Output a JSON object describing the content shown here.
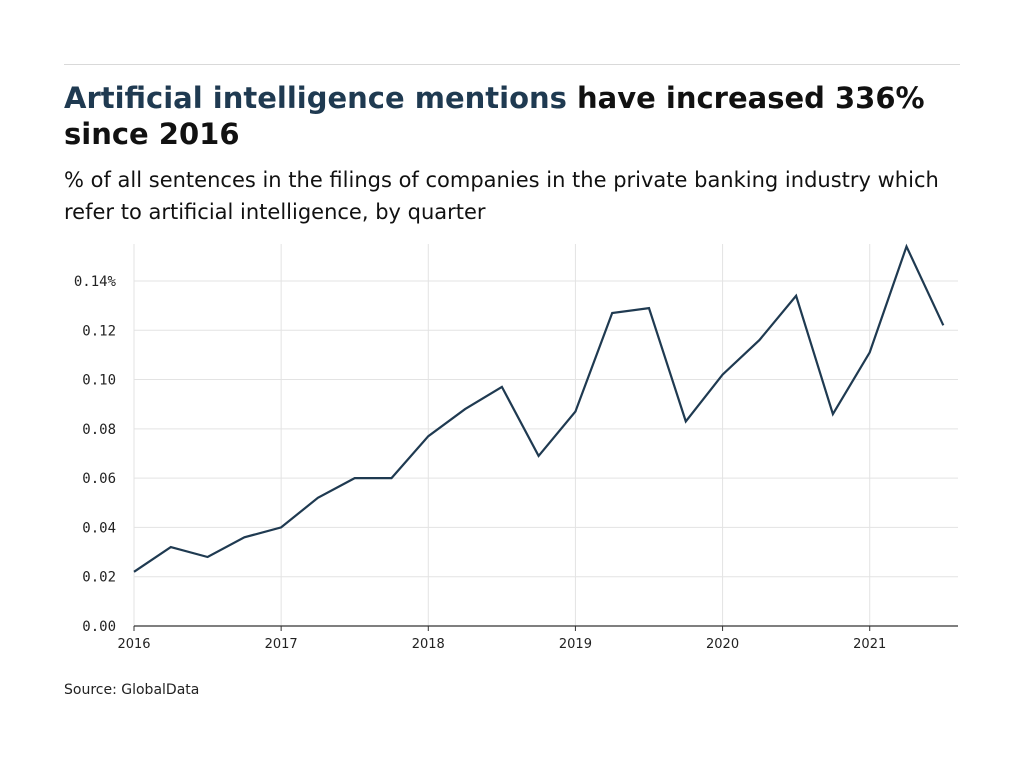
{
  "title": {
    "highlight": "Artificial intelligence mentions",
    "rest": " have increased 336% since 2016"
  },
  "subtitle": "% of all sentences in the filings of companies in the private banking industry which refer to artificial intelligence, by quarter",
  "source": "Source: GlobalData",
  "colors": {
    "line": "#1f3a51",
    "grid": "#e3e3e3",
    "axis": "#333333",
    "title_highlight": "#1f3a51"
  },
  "chart_data": {
    "type": "line",
    "title": "Artificial intelligence mentions have increased 336% since 2016",
    "subtitle": "% of all sentences in the filings of companies in the private banking industry which refer to artificial intelligence, by quarter",
    "xlabel": "",
    "ylabel": "",
    "xlim": [
      2016,
      2021.6
    ],
    "ylim": [
      0,
      0.155
    ],
    "grid": true,
    "legend": "none",
    "x_ticks": [
      {
        "value": 2016,
        "label": "2016"
      },
      {
        "value": 2017,
        "label": "2017"
      },
      {
        "value": 2018,
        "label": "2018"
      },
      {
        "value": 2019,
        "label": "2019"
      },
      {
        "value": 2020,
        "label": "2020"
      },
      {
        "value": 2021,
        "label": "2021"
      }
    ],
    "y_ticks": [
      {
        "value": 0,
        "label": "0.00"
      },
      {
        "value": 0.02,
        "label": "0.02"
      },
      {
        "value": 0.04,
        "label": "0.04"
      },
      {
        "value": 0.06,
        "label": "0.06"
      },
      {
        "value": 0.08,
        "label": "0.08"
      },
      {
        "value": 0.1,
        "label": "0.10"
      },
      {
        "value": 0.12,
        "label": "0.12"
      },
      {
        "value": 0.14,
        "label": "0.14%"
      }
    ],
    "series": [
      {
        "x": [
          2016,
          2016.25,
          2016.5,
          2016.75,
          2017,
          2017.25,
          2017.5,
          2017.75,
          2018,
          2018.25,
          2018.5,
          2018.75,
          2019,
          2019.25,
          2019.5,
          2019.75,
          2020,
          2020.25,
          2020.5,
          2020.75,
          2021,
          2021.25,
          2021.5
        ],
        "values": [
          0.022,
          0.032,
          0.028,
          0.036,
          0.04,
          0.052,
          0.06,
          0.06,
          0.077,
          0.088,
          0.097,
          0.069,
          0.087,
          0.127,
          0.129,
          0.083,
          0.102,
          0.116,
          0.134,
          0.086,
          0.111,
          0.154,
          0.122
        ]
      }
    ]
  }
}
